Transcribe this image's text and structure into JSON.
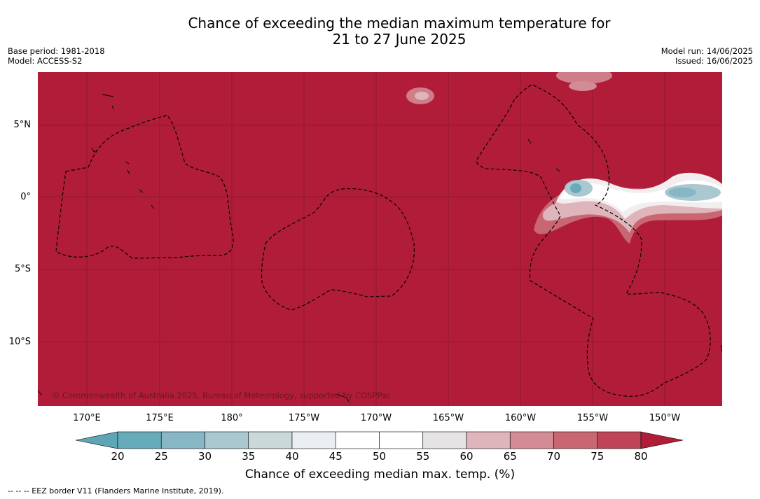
{
  "title_line1": "Chance of exceeding the median maximum temperature for",
  "title_line2": "21 to 27 June 2025",
  "meta_left": {
    "base_period": "Base period: 1981-2018",
    "model": "Model: ACCESS-S2"
  },
  "meta_right": {
    "model_run": "Model run: 14/06/2025",
    "issued": "Issued: 16/06/2025"
  },
  "lat_labels": [
    "5°N",
    "0°",
    "5°S",
    "10°S"
  ],
  "lon_labels": [
    "170°E",
    "175°E",
    "180°",
    "175°W",
    "170°W",
    "165°W",
    "160°W",
    "155°W",
    "150°W"
  ],
  "copyright": "© Commonwealth of Australia 2025, Bureau of Meteorology, supported by COSPPac",
  "colorbar": {
    "ticks": [
      "20",
      "25",
      "30",
      "35",
      "40",
      "45",
      "50",
      "55",
      "60",
      "65",
      "70",
      "75",
      "80"
    ],
    "colors": [
      "#5ea6b6",
      "#66abb9",
      "#87b7c4",
      "#a9c8cf",
      "#cad8da",
      "#eaeff2",
      "#ffffff",
      "#ffffff",
      "#e6e3e4",
      "#dfb5bc",
      "#d38b95",
      "#c86672",
      "#bf4457",
      "#b11d38"
    ],
    "label": "Chance of exceeding median max. temp. (%)"
  },
  "footer": "--  --  -- EEZ border V11 (Flanders Marine Institute, 2019).",
  "colors": {
    "map_fill": "#b11d38",
    "grid": "#6e1222"
  }
}
